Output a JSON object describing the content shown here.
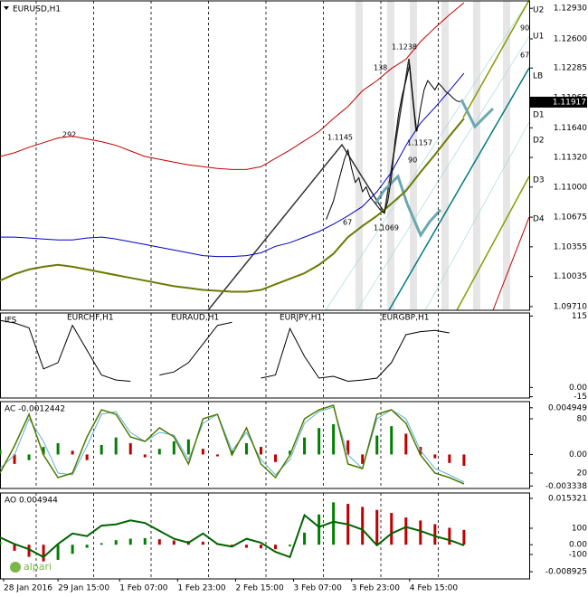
{
  "chart_data": [
    {
      "type": "line",
      "title": "EURUSD,H1",
      "x": [
        0,
        4,
        8,
        12,
        16,
        20,
        24,
        28,
        32,
        36,
        40,
        44,
        48,
        52,
        56,
        60,
        64,
        68,
        72,
        76,
        80,
        84,
        88,
        92,
        96,
        100,
        104,
        108,
        112,
        116,
        120,
        124,
        128
      ],
      "xlim": [
        0,
        146
      ],
      "ylim": [
        1.0967,
        1.1301
      ],
      "yticks": [
        {
          "value": 1.1293,
          "label": "1.12930"
        },
        {
          "value": 1.126,
          "label": "1.12600"
        },
        1.12285,
        1.11965,
        {
          "value": 1.1164,
          "label": "1.11640"
        },
        {
          "value": 1.1132,
          "label": "1.11320"
        },
        {
          "value": 1.11,
          "label": "1.11000"
        },
        1.10675,
        1.10355,
        1.10035,
        {
          "value": 1.0971,
          "label": "1.09710"
        }
      ],
      "last_price": 1.11917,
      "annotations": [
        "1.1238",
        "138",
        "1.1145",
        "1.1157",
        "90",
        "67",
        "1.1069",
        "292",
        "90",
        "67"
      ],
      "levels": [
        "U2",
        "U1",
        "LB",
        "D1",
        "D2",
        "D3",
        "D4"
      ],
      "series": [
        {
          "color": "#c00000",
          "values": [
            1.1133,
            1.1137,
            1.1143,
            1.1148,
            1.1153,
            1.1155,
            1.1152,
            1.1149,
            1.1145,
            1.1139,
            1.1133,
            1.113,
            1.1127,
            1.1124,
            1.1122,
            1.112,
            1.1119,
            1.1119,
            1.1122,
            1.1131,
            1.114,
            1.115,
            1.116,
            1.1174,
            1.1187,
            1.1204,
            1.1215,
            1.1228,
            1.1238,
            1.1257,
            1.1272,
            1.1286,
            1.1299
          ]
        },
        {
          "color": "#0000c0",
          "values": [
            1.1046,
            1.1046,
            1.1045,
            1.1044,
            1.1043,
            1.1043,
            1.1045,
            1.1046,
            1.1044,
            1.1041,
            1.1038,
            1.1035,
            1.1032,
            1.1029,
            1.1026,
            1.1025,
            1.1025,
            1.1026,
            1.1029,
            1.1036,
            1.104,
            1.1046,
            1.1052,
            1.106,
            1.1069,
            1.1079,
            1.1095,
            1.1116,
            1.1145,
            1.1169,
            1.1186,
            1.1204,
            1.1223
          ]
        },
        {
          "color": "#6b7a00",
          "width": 2,
          "values": [
            1.0999,
            1.1006,
            1.1011,
            1.1014,
            1.1016,
            1.1014,
            1.1011,
            1.1008,
            1.1005,
            1.1002,
            1.0999,
            1.0996,
            1.0993,
            1.0991,
            1.0989,
            1.0988,
            1.0987,
            1.0987,
            1.0989,
            1.0995,
            1.1001,
            1.1007,
            1.1016,
            1.1028,
            1.1046,
            1.1058,
            1.1069,
            1.1082,
            1.1096,
            1.1116,
            1.1135,
            1.1155,
            1.1174
          ]
        },
        {
          "color": "#000000",
          "x": [
            90,
            91,
            92,
            93,
            94,
            95,
            96,
            97,
            98,
            99,
            100,
            101,
            102,
            103,
            104,
            105,
            106,
            107,
            108,
            109,
            110,
            111,
            112,
            113,
            114,
            115,
            116,
            117,
            118,
            119,
            120,
            121,
            122,
            123,
            124,
            125,
            126,
            127
          ],
          "values": [
            1.1065,
            1.1075,
            1.1085,
            1.11,
            1.1115,
            1.113,
            1.114,
            1.112,
            1.1105,
            1.111,
            1.1095,
            1.11,
            1.109,
            1.1085,
            1.108,
            1.1075,
            1.1072,
            1.1085,
            1.111,
            1.115,
            1.118,
            1.12,
            1.1215,
            1.1232,
            1.119,
            1.116,
            1.1185,
            1.1205,
            1.1215,
            1.121,
            1.1205,
            1.1212,
            1.1208,
            1.1203,
            1.12,
            1.1196,
            1.1193,
            1.1192
          ]
        }
      ]
    },
    {
      "type": "line",
      "title": "IFS",
      "labels": [
        "EURCHF,H1",
        "EURAUD,H1",
        "EURJPY,H1",
        "EURGBP,H1"
      ],
      "x": [
        0,
        4,
        8,
        12,
        16,
        20,
        24,
        28,
        32,
        36,
        40,
        44,
        48,
        52,
        56,
        60,
        64,
        68,
        72,
        76,
        80,
        84,
        88,
        92,
        96,
        100,
        104,
        108,
        112,
        116,
        120,
        124,
        128
      ],
      "xlim": [
        0,
        146
      ],
      "ylim": [
        -17,
        120
      ],
      "yticks": [
        115,
        {
          "value": 0,
          "label": "0.00"
        },
        -15
      ],
      "series": [
        {
          "color": "#000000",
          "values": [
            108,
            104,
            96,
            30,
            40,
            100,
            60,
            20,
            12,
            10,
            null,
            20,
            25,
            40,
            70,
            100,
            105,
            null,
            15,
            20,
            95,
            50,
            15,
            18,
            10,
            12,
            15,
            40,
            85,
            90,
            92,
            88,
            null
          ]
        }
      ]
    },
    {
      "type": "bar",
      "title": "AC -0.0012442",
      "x": [
        0,
        4,
        8,
        12,
        16,
        20,
        24,
        28,
        32,
        36,
        40,
        44,
        48,
        52,
        56,
        60,
        64,
        68,
        72,
        76,
        80,
        84,
        88,
        92,
        96,
        100,
        104,
        108,
        112,
        116,
        120,
        124,
        128
      ],
      "xlim": [
        0,
        146
      ],
      "ylim": [
        -0.0036,
        0.0056
      ],
      "yticks": [
        0.004949,
        {
          "value": 0,
          "label": "0.00"
        },
        -0.003338
      ],
      "y2lim": [
        3,
        99
      ],
      "y2ticks": [
        80,
        20
      ],
      "series": [
        {
          "color": "#008000",
          "down_color": "#c00000",
          "values": [
            0.0005,
            -0.001,
            -0.0006,
            0.0008,
            0.0012,
            0.0004,
            -0.0006,
            0.001,
            0.0018,
            0.0012,
            -0.0003,
            0.0006,
            0.0014,
            0.0016,
            0.0006,
            -0.0002,
            0.0004,
            0.0012,
            0.0008,
            -0.0008,
            0.0004,
            0.0018,
            0.0028,
            0.0032,
            0.0015,
            -0.001,
            0.002,
            0.003,
            0.0022,
            0.0008,
            -0.0004,
            -0.0009,
            -0.0012
          ]
        },
        {
          "axis": "y2",
          "color": "#5fb0d0",
          "values": [
            25,
            40,
            80,
            55,
            20,
            18,
            50,
            85,
            88,
            65,
            55,
            65,
            62,
            35,
            75,
            85,
            45,
            65,
            35,
            18,
            35,
            75,
            88,
            93,
            40,
            25,
            80,
            90,
            80,
            45,
            25,
            18,
            10
          ]
        },
        {
          "axis": "y2",
          "color": "#4d7a00",
          "width": 1.5,
          "values": [
            20,
            50,
            85,
            40,
            15,
            20,
            60,
            90,
            85,
            60,
            55,
            70,
            60,
            30,
            80,
            85,
            40,
            70,
            30,
            15,
            40,
            80,
            90,
            95,
            30,
            25,
            85,
            90,
            75,
            40,
            20,
            15,
            8
          ]
        }
      ]
    },
    {
      "type": "bar",
      "title": "AO 0.004944",
      "x": [
        0,
        4,
        8,
        12,
        16,
        20,
        24,
        28,
        32,
        36,
        40,
        44,
        48,
        52,
        56,
        60,
        64,
        68,
        72,
        76,
        80,
        84,
        88,
        92,
        96,
        100,
        104,
        108,
        112,
        116,
        120,
        124,
        128
      ],
      "xlim": [
        0,
        146
      ],
      "ylim": [
        -0.0113,
        0.0171
      ],
      "yticks": [
        0.015321,
        {
          "value": 0,
          "label": "0.00"
        },
        -0.008925
      ],
      "y2lim": [
        -286,
        369
      ],
      "y2ticks": [
        100,
        -100
      ],
      "xticks": [
        {
          "value": 1,
          "label": "28 Jan 2016"
        },
        {
          "value": 16,
          "label": "29 Jan 15:00"
        },
        {
          "value": 33,
          "label": "1 Feb 07:00"
        },
        {
          "value": 49,
          "label": "1 Feb 23:00"
        },
        {
          "value": 65,
          "label": "2 Feb 15:00"
        },
        {
          "value": 81,
          "label": "3 Feb 07:00"
        },
        {
          "value": 97,
          "label": "3 Feb 23:00"
        },
        {
          "value": 113,
          "label": "4 Feb 15:00"
        }
      ],
      "series": [
        {
          "color": "#008000",
          "down_color": "#c00000",
          "values": [
            0.001,
            -0.002,
            -0.004,
            -0.0055,
            -0.005,
            -0.003,
            -0.001,
            0.0005,
            0.0015,
            0.002,
            0.0022,
            0.0018,
            0.0014,
            0.0012,
            0.001,
            0.0005,
            -0.0005,
            -0.001,
            -0.0012,
            -0.0015,
            -0.0005,
            0.004,
            0.01,
            0.014,
            0.0135,
            0.0125,
            0.0115,
            0.0105,
            0.009,
            0.008,
            0.0068,
            0.0056,
            0.0049
          ]
        },
        {
          "axis": "y2",
          "color": "#006400",
          "width": 2,
          "values": [
            30,
            -20,
            -60,
            -120,
            -20,
            60,
            40,
            120,
            130,
            160,
            140,
            80,
            20,
            -10,
            60,
            -20,
            -40,
            20,
            -10,
            -80,
            -120,
            200,
            110,
            150,
            130,
            90,
            -30,
            60,
            110,
            80,
            40,
            10,
            -30
          ]
        }
      ]
    }
  ],
  "logo": "alpari"
}
